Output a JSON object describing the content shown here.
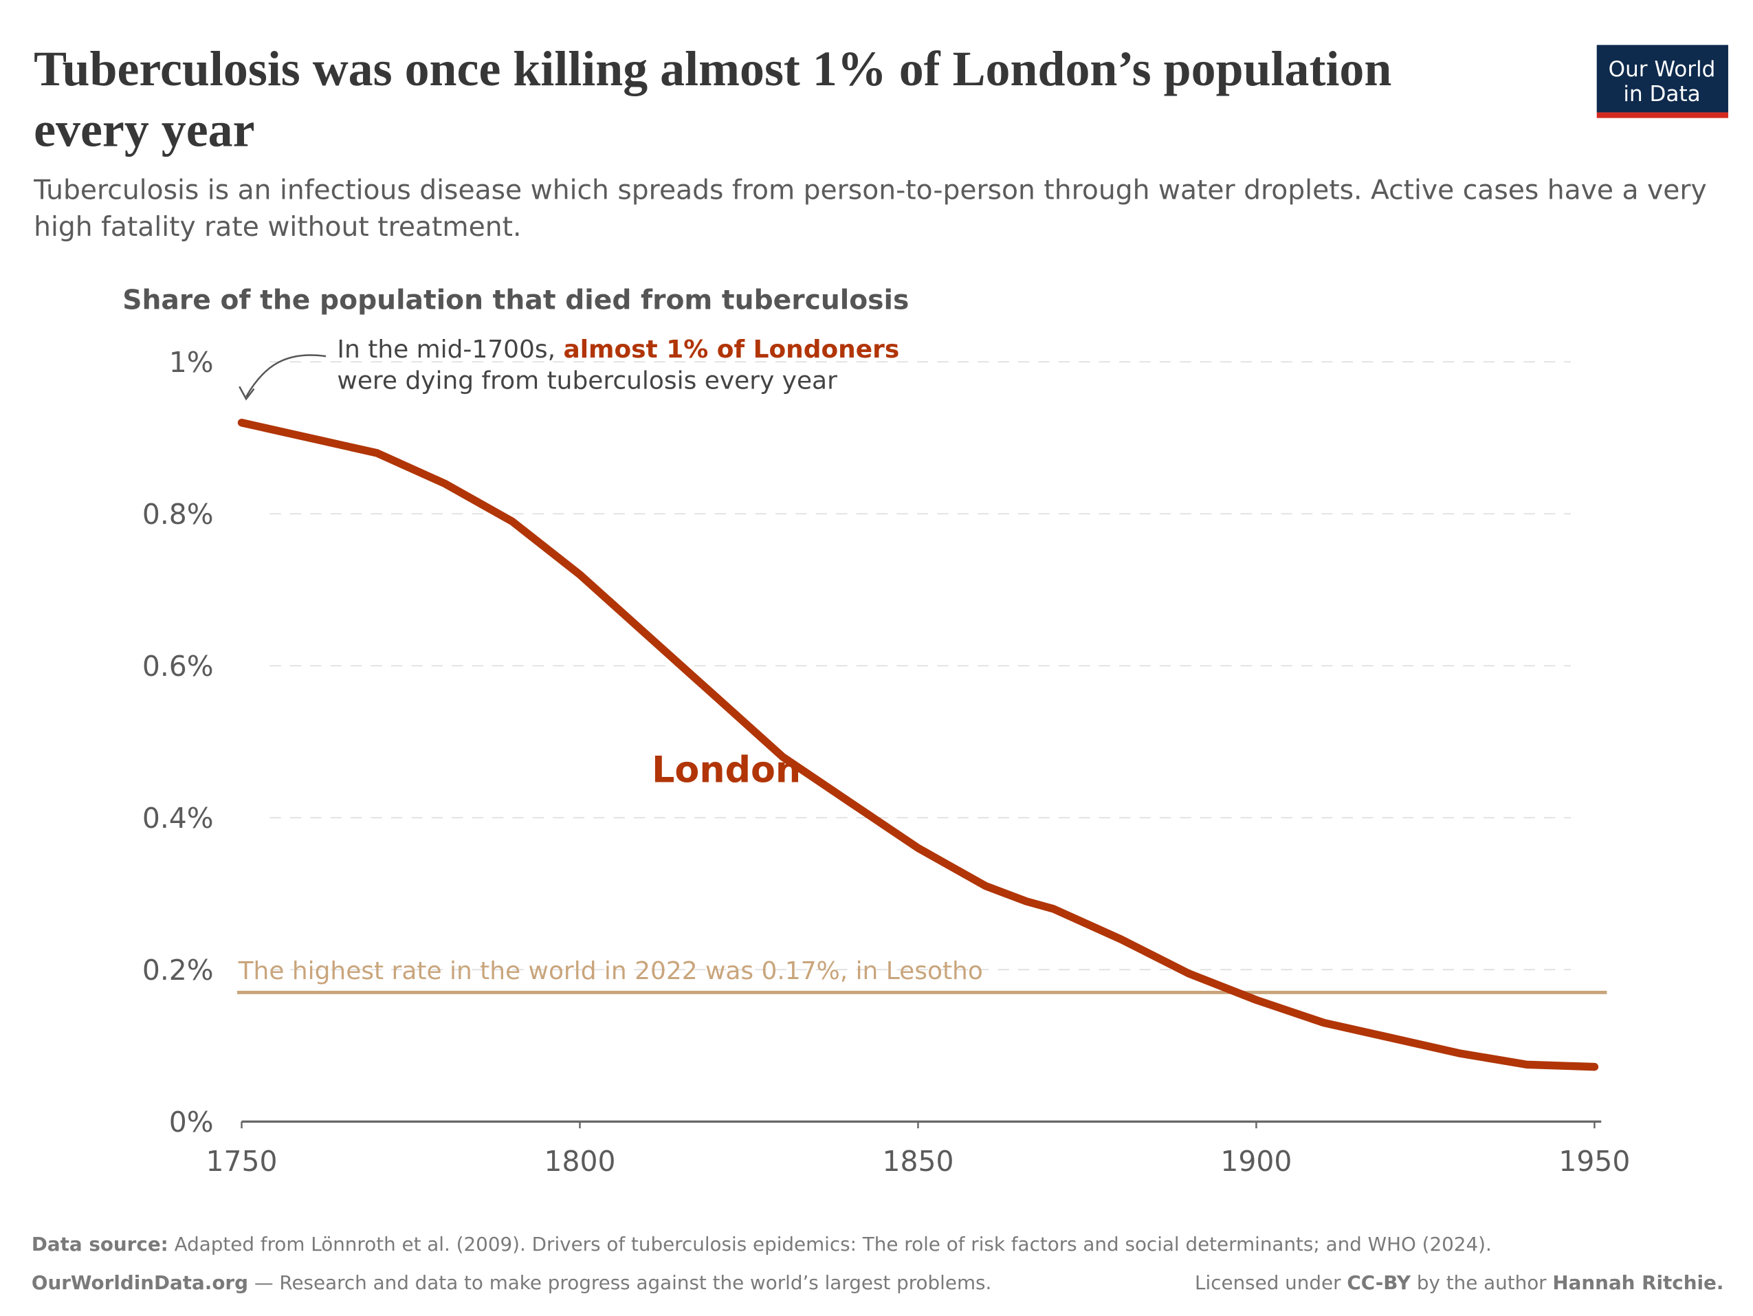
{
  "header": {
    "title_line1": "Tuberculosis was once killing almost 1% of London’s population",
    "title_line2": "every year",
    "subtitle_line1": "Tuberculosis is an infectious disease which spreads from person-to-person through water droplets. Active cases have a very",
    "subtitle_line2": "high fatality rate without treatment.",
    "logo_line1": "Our World",
    "logo_line2": "in Data"
  },
  "chart_data": {
    "type": "line",
    "y_axis_label": "Share of the population that died from tuberculosis",
    "x": [
      1750,
      1760,
      1770,
      1780,
      1790,
      1800,
      1810,
      1820,
      1830,
      1840,
      1850,
      1860,
      1866,
      1870,
      1880,
      1890,
      1900,
      1910,
      1920,
      1930,
      1940,
      1950
    ],
    "series": [
      {
        "name": "London",
        "color": "#b13507",
        "values": [
          0.92,
          0.9,
          0.88,
          0.84,
          0.79,
          0.72,
          0.64,
          0.56,
          0.48,
          0.42,
          0.36,
          0.31,
          0.29,
          0.28,
          0.24,
          0.195,
          0.16,
          0.13,
          0.11,
          0.09,
          0.075,
          0.072
        ]
      }
    ],
    "xlim": [
      1750,
      1951
    ],
    "xticks": [
      1750,
      1800,
      1850,
      1900,
      1950
    ],
    "ylim": [
      0,
      1
    ],
    "yticks": [
      {
        "value": 0,
        "label": "0%"
      },
      {
        "value": 0.2,
        "label": "0.2%"
      },
      {
        "value": 0.4,
        "label": "0.4%"
      },
      {
        "value": 0.6,
        "label": "0.6%"
      },
      {
        "value": 0.8,
        "label": "0.8%"
      },
      {
        "value": 1,
        "label": "1%"
      }
    ],
    "grid": true,
    "reference_line": {
      "value": 0.17,
      "label": "The highest rate in the world in 2022 was 0.17%, in Lesotho",
      "color": "#c9a57c"
    },
    "annotation": {
      "text1": "In the mid-1700s, ",
      "highlight": "almost 1% of Londoners",
      "text2": "were dying from tuberculosis every year"
    }
  },
  "footer": {
    "source_label": "Data source:",
    "source": "Adapted from Lönnroth et al. (2009). Drivers of tuberculosis epidemics: The role of risk factors and social determinants; and WHO (2024).",
    "site": "OurWorldinData.org",
    "tagline": "— Research and data to make progress against the world’s largest problems.",
    "license1": "Licensed under",
    "license2": "CC-BY",
    "license3": "by the author",
    "license4": "Hannah Ritchie."
  }
}
